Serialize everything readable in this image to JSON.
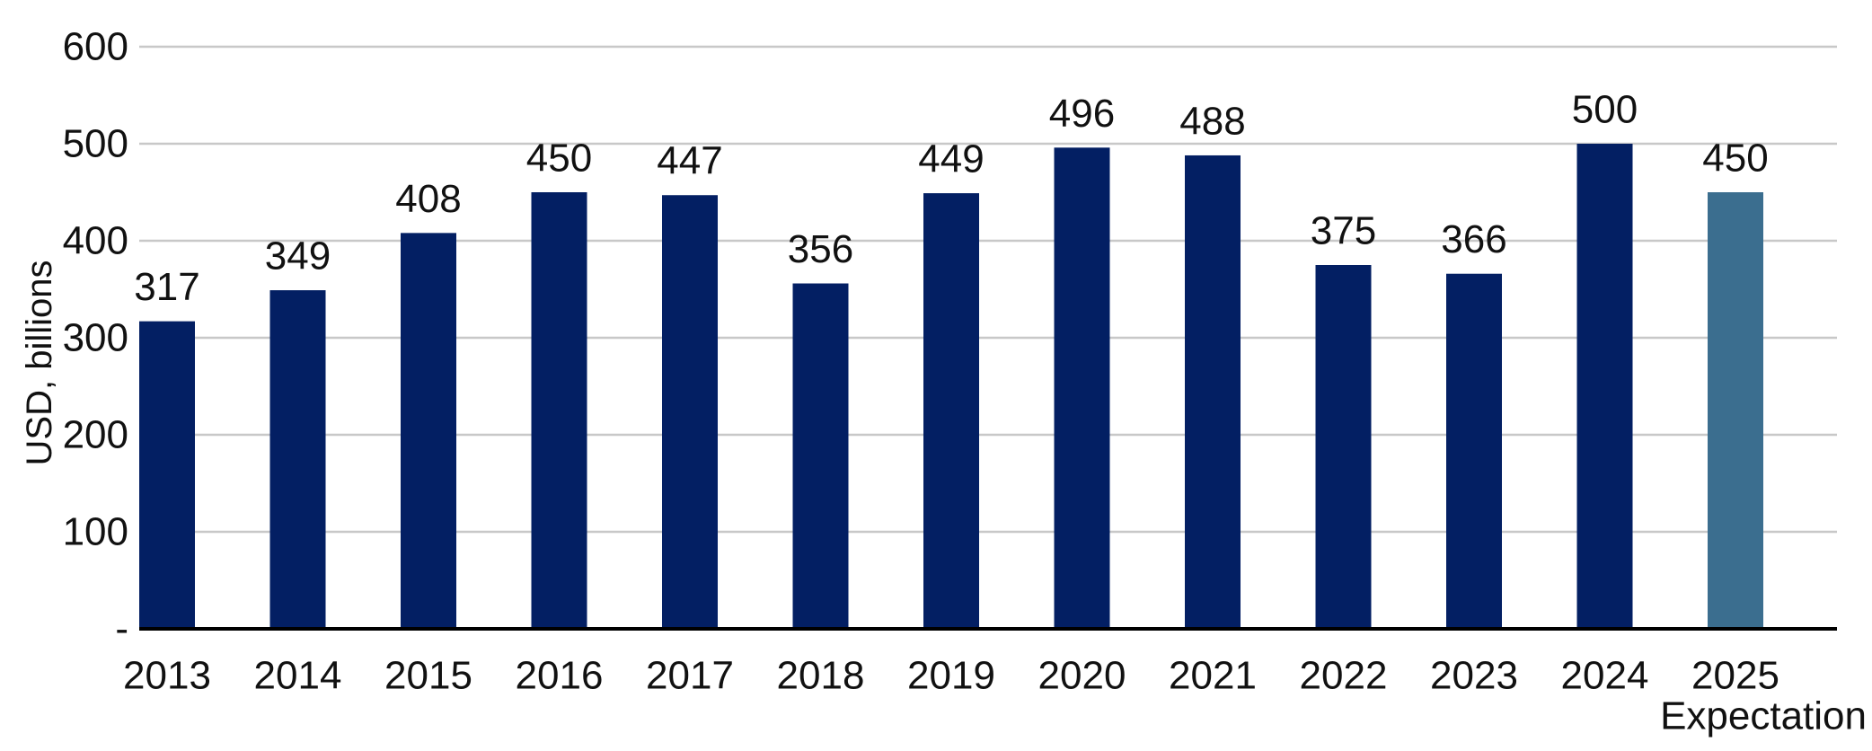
{
  "chart_data": {
    "type": "bar",
    "title": "",
    "xlabel": "",
    "ylabel": "USD, billions",
    "ylim": [
      0,
      600
    ],
    "yticks": [
      {
        "value": 0,
        "label": "-"
      },
      {
        "value": 100,
        "label": "100"
      },
      {
        "value": 200,
        "label": "200"
      },
      {
        "value": 300,
        "label": "300"
      },
      {
        "value": 400,
        "label": "400"
      },
      {
        "value": 500,
        "label": "500"
      },
      {
        "value": 600,
        "label": "600"
      }
    ],
    "grid": true,
    "categories": [
      "2013",
      "2014",
      "2015",
      "2016",
      "2017",
      "2018",
      "2019",
      "2020",
      "2021",
      "2022",
      "2023",
      "2024",
      "2025"
    ],
    "category_sublabels": [
      "",
      "",
      "",
      "",
      "",
      "",
      "",
      "",
      "",
      "",
      "",
      "",
      "Expectation"
    ],
    "values": [
      317,
      349,
      408,
      450,
      447,
      356,
      449,
      496,
      488,
      375,
      366,
      500,
      450
    ],
    "data_labels": [
      "317",
      "349",
      "408",
      "450",
      "447",
      "356",
      "449",
      "496",
      "488",
      "375",
      "366",
      "500",
      "450"
    ],
    "colors": {
      "actual": "#031f63",
      "expectation": "#3b6e8f",
      "grid": "#c8c8c8",
      "axis": "#000000"
    },
    "bar_color_keys": [
      "actual",
      "actual",
      "actual",
      "actual",
      "actual",
      "actual",
      "actual",
      "actual",
      "actual",
      "actual",
      "actual",
      "actual",
      "expectation"
    ]
  }
}
